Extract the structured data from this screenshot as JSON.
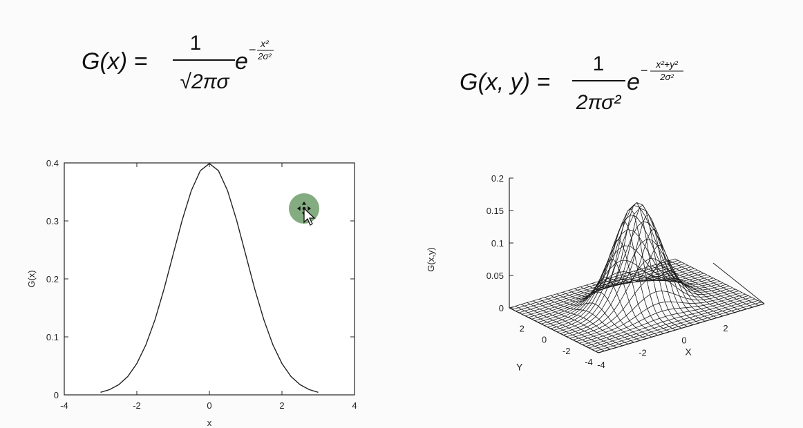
{
  "formulas": {
    "one_d": {
      "lhs": "G(x) =",
      "num": "1",
      "den": "√2πσ",
      "e": "e",
      "exp_sign": "−",
      "exp_num": "x²",
      "exp_den": "2σ²"
    },
    "two_d": {
      "lhs": "G(x, y) =",
      "num": "1",
      "den": "2πσ²",
      "e": "e",
      "exp_sign": "−",
      "exp_num": "x²+y²",
      "exp_den": "2σ²"
    }
  },
  "chart_data": [
    {
      "type": "line",
      "title": "",
      "xlabel": "x",
      "ylabel": "G(x)",
      "xlim": [
        -4,
        4
      ],
      "ylim": [
        0,
        0.4
      ],
      "xticks": [
        -4,
        -2,
        0,
        2,
        4
      ],
      "yticks": [
        0,
        0.1,
        0.2,
        0.3,
        0.4
      ],
      "xtick_labels": [
        "-4",
        "-2",
        "0",
        "2",
        "4"
      ],
      "ytick_labels": [
        "0",
        "0.1",
        "0.2",
        "0.3",
        "0.4"
      ],
      "series": [
        {
          "x": [
            -3,
            -2.75,
            -2.5,
            -2.25,
            -2,
            -1.75,
            -1.5,
            -1.25,
            -1,
            -0.75,
            -0.5,
            -0.25,
            0,
            0.25,
            0.5,
            0.75,
            1,
            1.25,
            1.5,
            1.75,
            2,
            2.25,
            2.5,
            2.75,
            3
          ],
          "y": [
            0.0044,
            0.0091,
            0.0175,
            0.0317,
            0.054,
            0.0863,
            0.1295,
            0.1826,
            0.242,
            0.3011,
            0.3521,
            0.3867,
            0.3989,
            0.3867,
            0.3521,
            0.3011,
            0.242,
            0.1826,
            0.1295,
            0.0863,
            0.054,
            0.0317,
            0.0175,
            0.0091,
            0.0044
          ]
        }
      ],
      "grid": false
    },
    {
      "type": "surface",
      "title": "",
      "xlabel": "X",
      "ylabel": "Y",
      "zlabel": "G(x,y)",
      "xlim": [
        -4,
        4
      ],
      "ylim": [
        -4,
        4
      ],
      "zlim": [
        0,
        0.2
      ],
      "zticks": [
        0,
        0.05,
        0.1,
        0.15,
        0.2
      ],
      "ztick_labels": [
        "0",
        "0.05",
        "0.1",
        "0.15",
        "0.2"
      ],
      "xtick_labels": [
        "-4",
        "-2",
        "0",
        "2"
      ],
      "ytick_labels": [
        "-4",
        "-2",
        "0",
        "2"
      ],
      "function": "exp(-(x^2+y^2)/2)/(2*pi)",
      "peak": 0.159,
      "grid_steps": 29
    }
  ],
  "cursor": {
    "highlight_color": "#6f9d6b"
  }
}
